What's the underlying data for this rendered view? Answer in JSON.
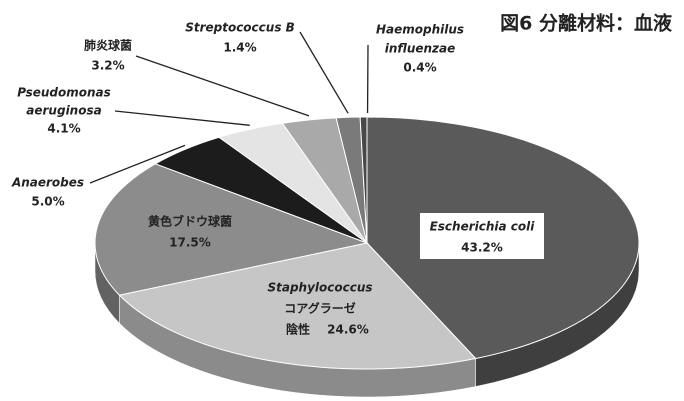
{
  "chart_data": {
    "type": "pie3d",
    "title": "図6 分離材料：血液",
    "categories": [
      [
        "Escherichia coli"
      ],
      [
        "Staphylococcus",
        "コアグラーゼ",
        "陰性"
      ],
      [
        "黄色ブドウ球菌"
      ],
      [
        "Anaerobes"
      ],
      [
        "Pseudomonas",
        "aeruginosa"
      ],
      [
        "肺炎球菌"
      ],
      [
        "Streptococcus B"
      ],
      [
        "Haemophilus",
        "influenzae"
      ]
    ],
    "values": [
      43.2,
      24.6,
      17.5,
      5.0,
      4.1,
      3.2,
      1.4,
      0.4
    ],
    "value_labels": [
      "43.2%",
      "24.6%",
      "17.5%",
      "5.0%",
      "4.1%",
      "3.2%",
      "1.4%",
      "0.4%"
    ],
    "colors": [
      "#5a5a5a",
      "#c6c6c6",
      "#8c8c8c",
      "#1c1c1c",
      "#e4e4e4",
      "#a9a9a9",
      "#7a7a7a",
      "#484848"
    ]
  }
}
